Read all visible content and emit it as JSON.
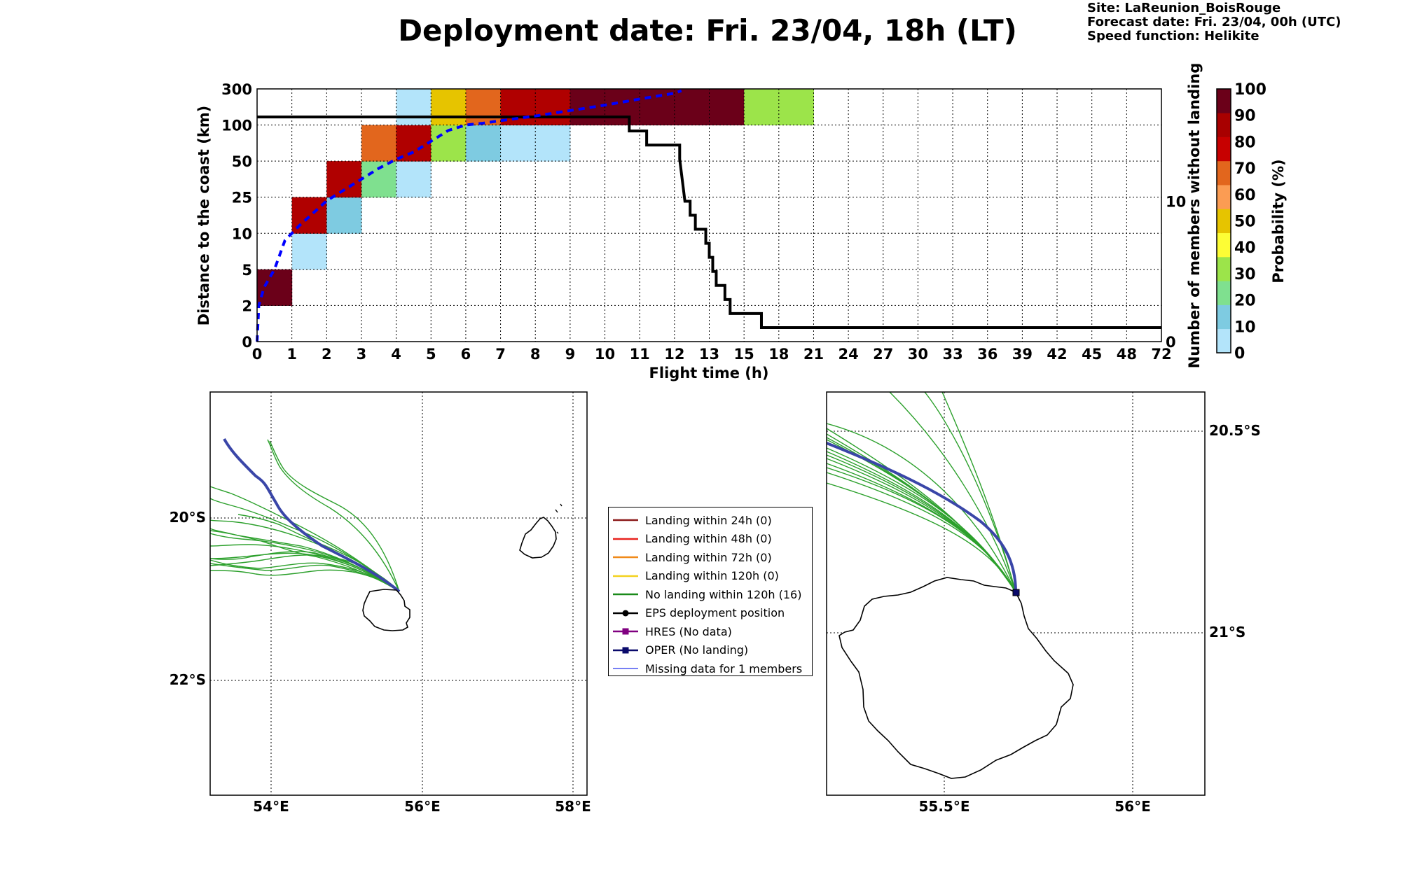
{
  "title": "Deployment date: Fri. 23/04, 18h (LT)",
  "site_info": {
    "site": "Site: LaReunion_BoisRouge",
    "forecast": "Forecast date: Fri. 23/04, 00h (UTC)",
    "speed": "Speed function: Helikite"
  },
  "colorbar": {
    "label": "Probability (%)",
    "ticks": [
      "0",
      "10",
      "20",
      "30",
      "40",
      "50",
      "60",
      "70",
      "80",
      "90",
      "100"
    ],
    "colors": [
      "#b3e4fa",
      "#7ecbe1",
      "#7fe08f",
      "#9ce44a",
      "#fdfd35",
      "#e6c400",
      "#fb9c53",
      "#e2661d",
      "#c70000",
      "#a80000",
      "#6b0019"
    ]
  },
  "chart_data": [
    {
      "type": "heatmap",
      "xlabel": "Flight time (h)",
      "ylabel": "Distance to the coast (km)",
      "y2label": "Number of members without landing",
      "x_ticks": [
        "0",
        "1",
        "2",
        "3",
        "4",
        "5",
        "6",
        "7",
        "8",
        "9",
        "10",
        "11",
        "12",
        "13",
        "15",
        "18",
        "21",
        "24",
        "27",
        "30",
        "33",
        "36",
        "39",
        "42",
        "45",
        "48",
        "72"
      ],
      "y_ticks": [
        "0",
        "2",
        "5",
        "10",
        "25",
        "50",
        "100",
        "300"
      ],
      "y2_ticks": [
        "0",
        "10"
      ],
      "y2_range": [
        0,
        18
      ],
      "grid": true,
      "cells": [
        {
          "x": 0,
          "y": 1,
          "color": "#6b0019"
        },
        {
          "x": 1,
          "y": 2,
          "color": "#b3e4fa"
        },
        {
          "x": 1,
          "y": 3,
          "color": "#b00000"
        },
        {
          "x": 2,
          "y": 3,
          "color": "#7ecbe1"
        },
        {
          "x": 2,
          "y": 4,
          "color": "#b00000"
        },
        {
          "x": 3,
          "y": 4,
          "color": "#7fe08f"
        },
        {
          "x": 3,
          "y": 5,
          "color": "#e2661d"
        },
        {
          "x": 4,
          "y": 4,
          "color": "#b3e4fa"
        },
        {
          "x": 4,
          "y": 5,
          "color": "#b00000"
        },
        {
          "x": 4,
          "y": 6,
          "color": "#b3e4fa"
        },
        {
          "x": 5,
          "y": 5,
          "color": "#9ce44a"
        },
        {
          "x": 5,
          "y": 6,
          "color": "#e6c400"
        },
        {
          "x": 6,
          "y": 5,
          "color": "#7ecbe1"
        },
        {
          "x": 6,
          "y": 6,
          "color": "#e2661d"
        },
        {
          "x": 7,
          "y": 5,
          "color": "#b3e4fa"
        },
        {
          "x": 7,
          "y": 6,
          "color": "#b00000"
        },
        {
          "x": 8,
          "y": 5,
          "color": "#b3e4fa"
        },
        {
          "x": 8,
          "y": 6,
          "color": "#b00000"
        },
        {
          "x": 9,
          "y": 6,
          "color": "#6b0019"
        },
        {
          "x": 10,
          "y": 6,
          "color": "#6b0019"
        },
        {
          "x": 11,
          "y": 6,
          "color": "#6b0019"
        },
        {
          "x": 12,
          "y": 6,
          "color": "#6b0019"
        },
        {
          "x": 13,
          "y": 6,
          "color": "#6b0019"
        },
        {
          "x": 14,
          "y": 6,
          "color": "#9ce44a"
        },
        {
          "x": 15,
          "y": 6,
          "color": "#9ce44a"
        }
      ],
      "members_without_landing": {
        "color": "#000000",
        "points": [
          [
            0,
            16
          ],
          [
            10.7,
            16
          ],
          [
            10.7,
            15
          ],
          [
            11.2,
            15
          ],
          [
            11.2,
            14
          ],
          [
            12.15,
            14
          ],
          [
            12.15,
            13
          ],
          [
            12.2,
            12
          ],
          [
            12.25,
            11
          ],
          [
            12.3,
            10
          ],
          [
            12.45,
            10
          ],
          [
            12.45,
            9
          ],
          [
            12.6,
            9
          ],
          [
            12.6,
            8
          ],
          [
            12.9,
            8
          ],
          [
            12.9,
            7
          ],
          [
            13.0,
            7
          ],
          [
            13.0,
            6
          ],
          [
            13.1,
            6
          ],
          [
            13.1,
            5
          ],
          [
            13.2,
            5
          ],
          [
            13.2,
            4
          ],
          [
            13.45,
            4
          ],
          [
            13.45,
            3
          ],
          [
            13.6,
            3
          ],
          [
            13.6,
            2
          ],
          [
            14.5,
            2
          ],
          [
            14.5,
            1
          ],
          [
            26,
            1
          ]
        ]
      },
      "median_distance": {
        "color": "#0000ff",
        "style": "dashed",
        "points": [
          [
            0,
            0
          ],
          [
            0.05,
            1.0
          ],
          [
            0.2,
            1.5
          ],
          [
            0.5,
            2.0
          ],
          [
            0.8,
            2.8
          ],
          [
            1.2,
            3.2
          ],
          [
            1.6,
            3.55
          ],
          [
            2.0,
            3.9
          ],
          [
            2.5,
            4.2
          ],
          [
            3.0,
            4.5
          ],
          [
            3.5,
            4.8
          ],
          [
            4.0,
            5.05
          ],
          [
            4.5,
            5.25
          ],
          [
            5.0,
            5.55
          ],
          [
            5.5,
            5.85
          ],
          [
            6.0,
            6.0
          ],
          [
            6.5,
            6.05
          ],
          [
            7.0,
            6.12
          ],
          [
            8.0,
            6.25
          ],
          [
            9.0,
            6.4
          ],
          [
            10.0,
            6.55
          ],
          [
            11.0,
            6.72
          ],
          [
            12.0,
            6.88
          ],
          [
            12.2,
            6.95
          ]
        ]
      }
    },
    {
      "type": "map",
      "lon_ticks": [
        "54°E",
        "56°E",
        "58°E"
      ],
      "lat_ticks": [
        "20°S",
        "22°S"
      ]
    },
    {
      "type": "map",
      "lon_ticks": [
        "55.5°E",
        "56°E"
      ],
      "lat_ticks": [
        "20.5°S",
        "21°S"
      ]
    }
  ],
  "legend": [
    {
      "label": "Landing within 24h (0)",
      "color": "#8b1a1a",
      "kind": "line"
    },
    {
      "label": "Landing within 48h (0)",
      "color": "#e8221e",
      "kind": "line"
    },
    {
      "label": "Landing within 72h (0)",
      "color": "#f08a1a",
      "kind": "line"
    },
    {
      "label": "Landing within 120h (0)",
      "color": "#f3d21f",
      "kind": "line"
    },
    {
      "label": "No landing within 120h (16)",
      "color": "#1a8a1a",
      "kind": "line"
    },
    {
      "label": "EPS deployment position",
      "color": "#000000",
      "kind": "dot"
    },
    {
      "label": "HRES (No data)",
      "color": "#800080",
      "kind": "square"
    },
    {
      "label": "OPER (No landing)",
      "color": "#0a0a6b",
      "kind": "square"
    },
    {
      "label": "Missing data for 1 members",
      "color": "#4a57f0",
      "kind": "thin"
    }
  ]
}
